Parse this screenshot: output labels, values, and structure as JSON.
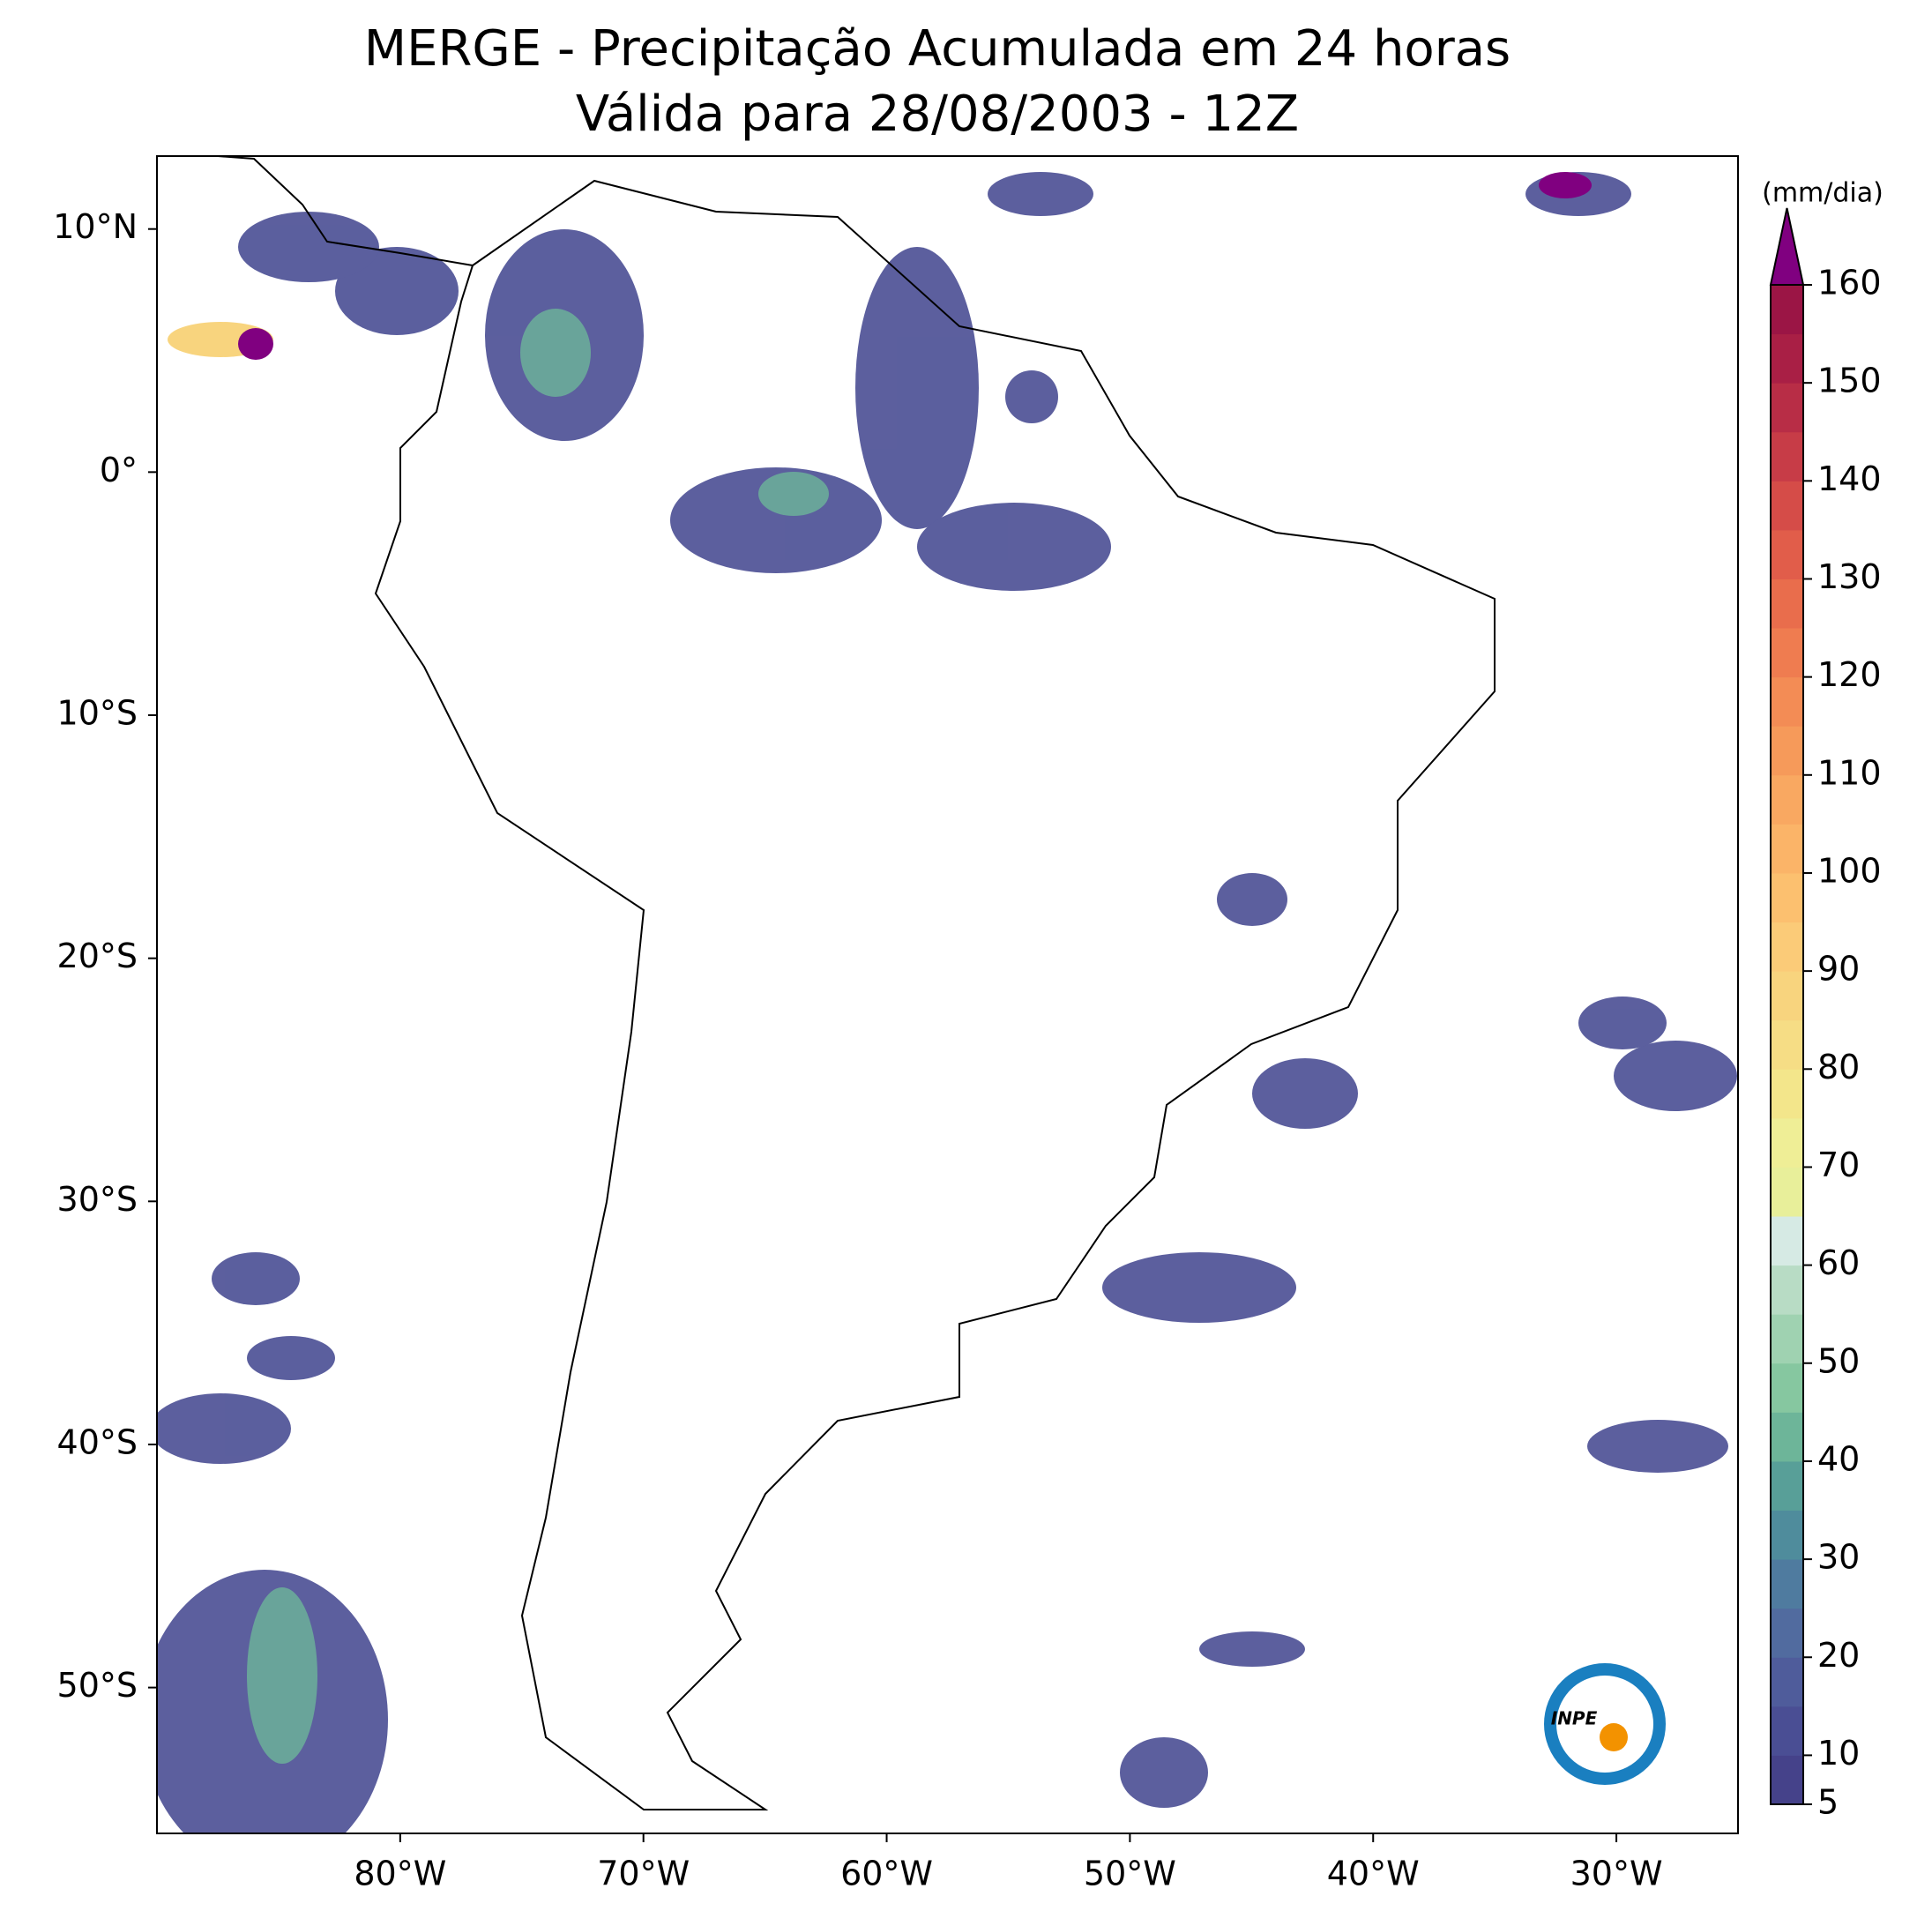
{
  "header": {
    "title": "MERGE - Precipitação Acumulada em 24 horas",
    "subtitle": "Válida para 28/08/2003 - 12Z"
  },
  "map": {
    "xlim": [
      -90,
      -25
    ],
    "ylim": [
      -56,
      13
    ],
    "xticks": [
      {
        "value": -80,
        "label": "80°W"
      },
      {
        "value": -70,
        "label": "70°W"
      },
      {
        "value": -60,
        "label": "60°W"
      },
      {
        "value": -50,
        "label": "50°W"
      },
      {
        "value": -40,
        "label": "40°W"
      },
      {
        "value": -30,
        "label": "30°W"
      }
    ],
    "yticks": [
      {
        "value": 10,
        "label": "10°N"
      },
      {
        "value": 0,
        "label": "0°"
      },
      {
        "value": -10,
        "label": "10°S"
      },
      {
        "value": -20,
        "label": "20°S"
      },
      {
        "value": -30,
        "label": "30°S"
      },
      {
        "value": -40,
        "label": "40°S"
      },
      {
        "value": -50,
        "label": "50°S"
      }
    ]
  },
  "colorbar": {
    "label": "(mm/dia)",
    "lim": [
      5,
      160
    ],
    "ticks": [
      5,
      10,
      20,
      30,
      40,
      50,
      60,
      70,
      80,
      90,
      100,
      110,
      120,
      130,
      140,
      150,
      160
    ],
    "levels": [
      5,
      10,
      15,
      20,
      25,
      30,
      35,
      40,
      45,
      50,
      55,
      60,
      65,
      70,
      75,
      80,
      85,
      90,
      95,
      100,
      105,
      110,
      115,
      120,
      125,
      130,
      135,
      140,
      145,
      150,
      155,
      160
    ],
    "colors": [
      "#45428a",
      "#4a4e94",
      "#4f5c9b",
      "#516b9f",
      "#4f7b9f",
      "#4f8c9c",
      "#589f98",
      "#6db599",
      "#86c7a0",
      "#9fd2b1",
      "#b8dcc5",
      "#d6eae4",
      "#e8ef9a",
      "#efee96",
      "#f3e68b",
      "#f6dd85",
      "#f8d47e",
      "#fbcb78",
      "#fcc06f",
      "#fbb468",
      "#f9a861",
      "#f69a5a",
      "#f38c55",
      "#ef7c50",
      "#e96d4c",
      "#e15d4a",
      "#d54c48",
      "#c73c47",
      "#b82d46",
      "#a91f45",
      "#9b1545"
    ],
    "extend": "max",
    "over_color": "#800080"
  },
  "logo": {
    "text": "INPE"
  }
}
